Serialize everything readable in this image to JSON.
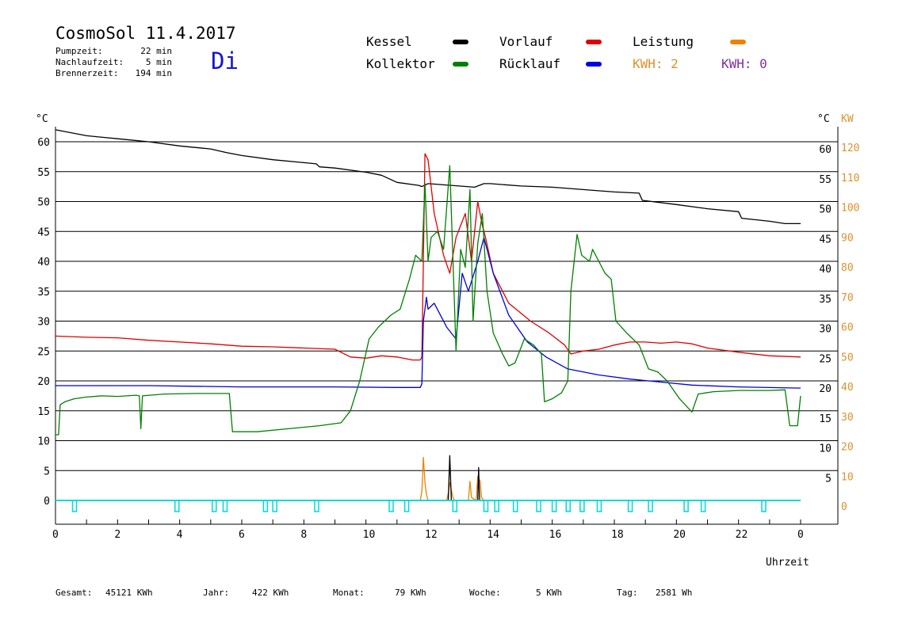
{
  "header": {
    "title": "CosmoSol 11.4.2017",
    "day": "Di",
    "stats": [
      {
        "label": "Pumpzeit:",
        "value": "22 min"
      },
      {
        "label": "Nachlaufzeit:",
        "value": "5 min"
      },
      {
        "label": "Brennerzeit:",
        "value": "194 min"
      }
    ]
  },
  "legend": {
    "kessel": {
      "label": "Kessel",
      "color": "#000000"
    },
    "vorlauf": {
      "label": "Vorlauf",
      "color": "#e00000"
    },
    "leistung": {
      "label": "Leistung",
      "color": "#f08000"
    },
    "kollektor": {
      "label": "Kollektor",
      "color": "#008000"
    },
    "ruecklauf": {
      "label": "Rücklauf",
      "color": "#0000e0"
    },
    "kwh1": {
      "label": "KWH: 2",
      "color": "#e09030"
    },
    "kwh2": {
      "label": "KWH: 0",
      "color": "#8030a0"
    }
  },
  "chart_data": {
    "type": "line",
    "xlabel": "Uhrzeit",
    "ylabel_left": "°C",
    "ylabel_right": "°C",
    "ylabel_right2": "KW",
    "xlim": [
      0,
      24
    ],
    "ylim": [
      0,
      65
    ],
    "x_ticks": [
      "0",
      "2",
      "4",
      "6",
      "8",
      "10",
      "12",
      "14",
      "16",
      "18",
      "20",
      "22",
      "0"
    ],
    "y_ticks_left": [
      "0",
      "5",
      "10",
      "15",
      "20",
      "25",
      "30",
      "35",
      "40",
      "45",
      "50",
      "55",
      "60"
    ],
    "y_ticks_right": [
      "5",
      "10",
      "15",
      "20",
      "25",
      "30",
      "35",
      "40",
      "45",
      "50",
      "55",
      "60"
    ],
    "y_ticks_kw": [
      "0",
      "10",
      "20",
      "30",
      "40",
      "50",
      "60",
      "70",
      "80",
      "90",
      "100",
      "110",
      "120"
    ],
    "grid": true,
    "series": [
      {
        "name": "Kessel",
        "color": "#000000",
        "points": [
          [
            0,
            62
          ],
          [
            1,
            61
          ],
          [
            2,
            60.5
          ],
          [
            3,
            60
          ],
          [
            4,
            59.3
          ],
          [
            5,
            58.8
          ],
          [
            5.5,
            58.2
          ],
          [
            6,
            57.7
          ],
          [
            7,
            57
          ],
          [
            8,
            56.5
          ],
          [
            8.4,
            56.3
          ],
          [
            8.5,
            55.8
          ],
          [
            9,
            55.6
          ],
          [
            10,
            54.9
          ],
          [
            10.5,
            54.4
          ],
          [
            11,
            53.2
          ],
          [
            11.7,
            52.7
          ],
          [
            11.8,
            52.5
          ],
          [
            12,
            53
          ],
          [
            12.5,
            52.8
          ],
          [
            13,
            52.6
          ],
          [
            13.5,
            52.4
          ],
          [
            13.8,
            53
          ],
          [
            14,
            53
          ],
          [
            15,
            52.6
          ],
          [
            16,
            52.4
          ],
          [
            17,
            52
          ],
          [
            18,
            51.6
          ],
          [
            18.8,
            51.4
          ],
          [
            18.9,
            50.2
          ],
          [
            20,
            49.5
          ],
          [
            21,
            48.8
          ],
          [
            22,
            48.3
          ],
          [
            22.1,
            47.2
          ],
          [
            23,
            46.7
          ],
          [
            23.5,
            46.3
          ],
          [
            24,
            46.3
          ]
        ]
      },
      {
        "name": "Vorlauf",
        "color": "#e00000",
        "points": [
          [
            0,
            27.5
          ],
          [
            1,
            27.3
          ],
          [
            2,
            27.2
          ],
          [
            3,
            26.8
          ],
          [
            4,
            26.5
          ],
          [
            5,
            26.2
          ],
          [
            6,
            25.8
          ],
          [
            7,
            25.7
          ],
          [
            8,
            25.5
          ],
          [
            9,
            25.3
          ],
          [
            9.5,
            24
          ],
          [
            10,
            23.8
          ],
          [
            10.5,
            24.2
          ],
          [
            11,
            24
          ],
          [
            11.5,
            23.5
          ],
          [
            11.75,
            23.5
          ],
          [
            11.8,
            24
          ],
          [
            11.85,
            40
          ],
          [
            11.9,
            58
          ],
          [
            12,
            57
          ],
          [
            12.2,
            48
          ],
          [
            12.5,
            41
          ],
          [
            12.7,
            38
          ],
          [
            12.9,
            44
          ],
          [
            13.2,
            48
          ],
          [
            13.4,
            40
          ],
          [
            13.6,
            50
          ],
          [
            13.75,
            46
          ],
          [
            13.85,
            44
          ],
          [
            14.1,
            38
          ],
          [
            14.6,
            33
          ],
          [
            15.3,
            30
          ],
          [
            15.9,
            28
          ],
          [
            16.4,
            26
          ],
          [
            16.6,
            24.5
          ],
          [
            17,
            25
          ],
          [
            17.5,
            25.3
          ],
          [
            18,
            26
          ],
          [
            18.5,
            26.5
          ],
          [
            19,
            26.5
          ],
          [
            19.5,
            26.3
          ],
          [
            20,
            26.5
          ],
          [
            20.5,
            26.2
          ],
          [
            21,
            25.5
          ],
          [
            22,
            24.8
          ],
          [
            23,
            24.2
          ],
          [
            24,
            24
          ]
        ]
      },
      {
        "name": "Rücklauf",
        "color": "#0000e0",
        "points": [
          [
            0,
            19.2
          ],
          [
            3,
            19.2
          ],
          [
            6,
            19
          ],
          [
            9,
            19
          ],
          [
            11,
            18.9
          ],
          [
            11.75,
            18.9
          ],
          [
            11.8,
            19.5
          ],
          [
            11.85,
            30
          ],
          [
            11.95,
            34
          ],
          [
            12,
            32
          ],
          [
            12.2,
            33
          ],
          [
            12.6,
            29
          ],
          [
            12.9,
            27
          ],
          [
            13.1,
            38
          ],
          [
            13.3,
            35
          ],
          [
            13.6,
            40
          ],
          [
            13.8,
            44
          ],
          [
            14.1,
            38
          ],
          [
            14.6,
            31
          ],
          [
            15.2,
            26.5
          ],
          [
            15.8,
            24
          ],
          [
            16.5,
            22
          ],
          [
            17.5,
            21
          ],
          [
            18.5,
            20.3
          ],
          [
            19.5,
            19.8
          ],
          [
            20.5,
            19.3
          ],
          [
            22,
            19
          ],
          [
            24,
            18.8
          ]
        ]
      },
      {
        "name": "Kollektor",
        "color": "#008000",
        "points": [
          [
            0,
            11
          ],
          [
            0.1,
            11
          ],
          [
            0.15,
            16
          ],
          [
            0.3,
            16.5
          ],
          [
            0.6,
            17
          ],
          [
            1,
            17.3
          ],
          [
            1.5,
            17.5
          ],
          [
            2,
            17.4
          ],
          [
            2.6,
            17.6
          ],
          [
            2.7,
            17.5
          ],
          [
            2.75,
            12
          ],
          [
            2.8,
            17.5
          ],
          [
            3.5,
            17.8
          ],
          [
            4.5,
            17.9
          ],
          [
            5.6,
            17.9
          ],
          [
            5.7,
            11.5
          ],
          [
            6.5,
            11.5
          ],
          [
            7.5,
            12
          ],
          [
            8.5,
            12.5
          ],
          [
            9.2,
            13
          ],
          [
            9.5,
            15
          ],
          [
            9.8,
            20
          ],
          [
            10.1,
            27
          ],
          [
            10.4,
            29
          ],
          [
            10.8,
            31
          ],
          [
            11.1,
            32
          ],
          [
            11.4,
            37
          ],
          [
            11.6,
            41
          ],
          [
            11.8,
            40
          ],
          [
            11.9,
            53
          ],
          [
            12,
            40
          ],
          [
            12.1,
            44
          ],
          [
            12.3,
            45
          ],
          [
            12.5,
            42
          ],
          [
            12.7,
            56
          ],
          [
            12.9,
            25
          ],
          [
            13.05,
            42
          ],
          [
            13.2,
            39
          ],
          [
            13.35,
            52
          ],
          [
            13.45,
            30
          ],
          [
            13.6,
            43
          ],
          [
            13.75,
            48
          ],
          [
            13.9,
            35
          ],
          [
            14.1,
            28
          ],
          [
            14.4,
            24.5
          ],
          [
            14.6,
            22.5
          ],
          [
            14.8,
            23
          ],
          [
            15.1,
            27
          ],
          [
            15.4,
            26
          ],
          [
            15.65,
            24.5
          ],
          [
            15.75,
            16.5
          ],
          [
            16,
            17
          ],
          [
            16.3,
            18
          ],
          [
            16.5,
            20
          ],
          [
            16.6,
            35
          ],
          [
            16.8,
            44.5
          ],
          [
            16.95,
            41
          ],
          [
            17.2,
            40
          ],
          [
            17.3,
            42
          ],
          [
            17.5,
            40
          ],
          [
            17.7,
            38
          ],
          [
            17.9,
            37
          ],
          [
            18.05,
            30
          ],
          [
            18.4,
            28
          ],
          [
            18.8,
            26
          ],
          [
            19.1,
            22
          ],
          [
            19.4,
            21.5
          ],
          [
            19.7,
            20
          ],
          [
            20.1,
            17
          ],
          [
            20.5,
            14.8
          ],
          [
            20.7,
            17.8
          ],
          [
            21.2,
            18.2
          ],
          [
            22,
            18.4
          ],
          [
            23,
            18.4
          ],
          [
            23.5,
            18.5
          ],
          [
            23.65,
            12.5
          ],
          [
            23.9,
            12.5
          ],
          [
            24,
            17.5
          ]
        ]
      },
      {
        "name": "Leistung",
        "color": "#f08000",
        "points": [
          [
            11.75,
            0
          ],
          [
            11.8,
            1.5
          ],
          [
            11.85,
            7.2
          ],
          [
            11.9,
            3
          ],
          [
            11.95,
            1
          ],
          [
            12,
            0
          ],
          [
            12.6,
            0
          ],
          [
            12.65,
            1.2
          ],
          [
            12.7,
            3
          ],
          [
            12.8,
            0.6
          ],
          [
            12.85,
            0
          ],
          [
            13.3,
            0
          ],
          [
            13.35,
            3.2
          ],
          [
            13.4,
            0.5
          ],
          [
            13.55,
            0
          ],
          [
            13.6,
            4
          ],
          [
            13.68,
            3.2
          ],
          [
            13.72,
            0.5
          ],
          [
            13.8,
            0
          ]
        ]
      },
      {
        "name": "Pumpe",
        "color": "#000000",
        "points": [
          [
            12.65,
            0
          ],
          [
            12.7,
            7.5
          ],
          [
            12.75,
            0
          ],
          [
            13.6,
            0
          ],
          [
            13.63,
            5.5
          ],
          [
            13.66,
            0
          ]
        ]
      }
    ],
    "pump_markers_h": [
      0.6,
      3.9,
      5.1,
      5.45,
      6.75,
      7.05,
      8.4,
      10.8,
      11.3,
      12.85,
      13.85,
      14.2,
      14.8,
      15.55,
      16.05,
      16.5,
      16.95,
      17.5,
      18.5,
      19.15,
      20.3,
      20.85,
      22.8
    ]
  },
  "footer": {
    "items": [
      {
        "label": "Gesamt:",
        "value": "45121 KWh"
      },
      {
        "label": "Jahr:",
        "value": "422 KWh"
      },
      {
        "label": "Monat:",
        "value": "79 KWh"
      },
      {
        "label": "Woche:",
        "value": "5 KWh"
      },
      {
        "label": "Tag:",
        "value": "2581 Wh"
      }
    ]
  }
}
